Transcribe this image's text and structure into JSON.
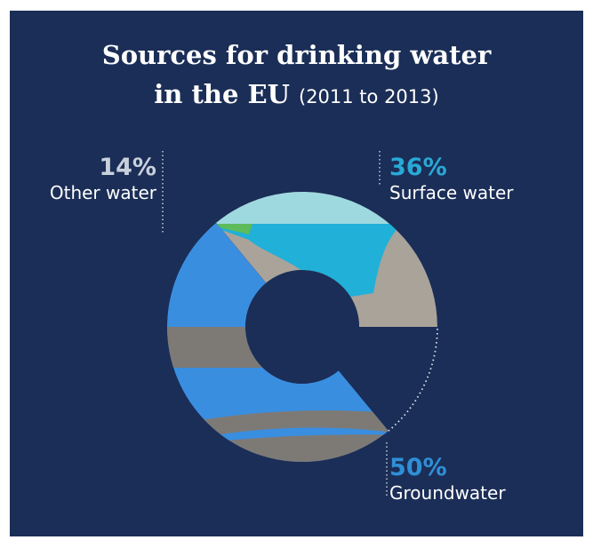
{
  "title": {
    "line1": "Sources for drinking water",
    "line2_bold": "in the EU",
    "line2_range": "(2011 to 2013)"
  },
  "chart_data": {
    "type": "pie",
    "variant": "donut",
    "categories": [
      "Surface water",
      "Groundwater",
      "Other water"
    ],
    "values": [
      36,
      50,
      14
    ],
    "value_labels": [
      "36%",
      "50%",
      "14%"
    ],
    "label_colors": [
      "#29a9d6",
      "#2f8fd6",
      "#c8d0dc"
    ],
    "start_angle_deg": 0,
    "legend": "direct labels"
  },
  "colors": {
    "background": "#1b2e57",
    "surface_fill": "#9fd9e0",
    "surface_accent": "#21b0d8",
    "surface_bank": "#aaa39a",
    "ground_fill": "#3a8ee0",
    "ground_band": "#7d7a76",
    "other_outline": "#dfe6ef"
  }
}
